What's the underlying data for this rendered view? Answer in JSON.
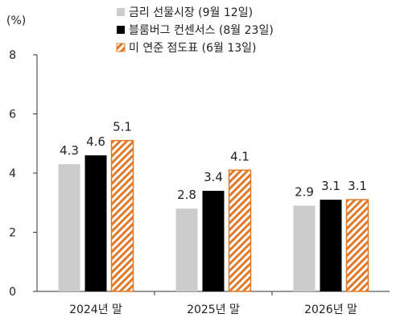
{
  "chart_data": {
    "type": "bar",
    "unit_label": "(%)",
    "categories": [
      "2024년 말",
      "2025년 말",
      "2026년 말"
    ],
    "ylim": [
      0,
      8
    ],
    "yticks": [
      0,
      2,
      4,
      6,
      8
    ],
    "grid": false,
    "legend_position": "top",
    "series": [
      {
        "name": "금리 선물시장 (9월 12일)",
        "values": [
          4.3,
          2.8,
          2.9
        ],
        "labels": [
          "4.3",
          "2.8",
          "2.9"
        ],
        "color": "#cccccc",
        "style": "solid"
      },
      {
        "name": "블룸버그 컨센서스 (8월 23일)",
        "values": [
          4.6,
          3.4,
          3.1
        ],
        "labels": [
          "4.6",
          "3.4",
          "3.1"
        ],
        "color": "#000000",
        "style": "solid"
      },
      {
        "name": "미 연준 점도표 (6월 13일)",
        "values": [
          5.1,
          4.1,
          3.1
        ],
        "labels": [
          "5.1",
          "4.1",
          "3.1"
        ],
        "color": "#e07a2a",
        "style": "hatched"
      }
    ]
  }
}
